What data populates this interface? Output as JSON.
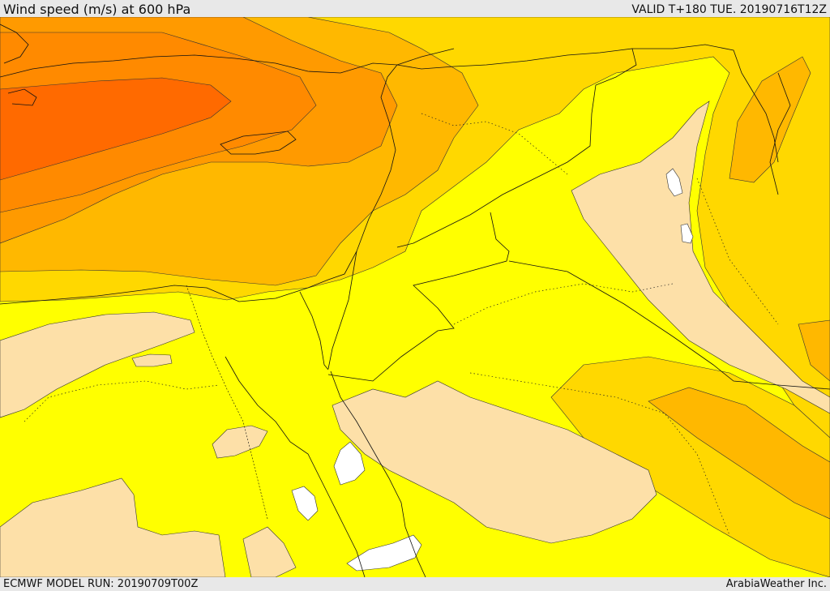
{
  "header": {
    "title": "Wind speed (m/s) at 600 hPa",
    "valid_time": "VALID T+180 TUE. 20190716T12Z"
  },
  "footer": {
    "model_run": "ECMWF MODEL RUN: 20190709T00Z",
    "credit": "ArabiaWeather Inc."
  },
  "map": {
    "variable": "wind speed",
    "units": "m/s",
    "pressure_level": "600 hPa",
    "colors": {
      "very_light": "#fde0a8",
      "light": "#ffff00",
      "moderate": "#ffd800",
      "strong": "#ffb800",
      "very_strong": "#ff9a00",
      "extreme": "#ff6a00",
      "calm": "#ffffff"
    }
  }
}
